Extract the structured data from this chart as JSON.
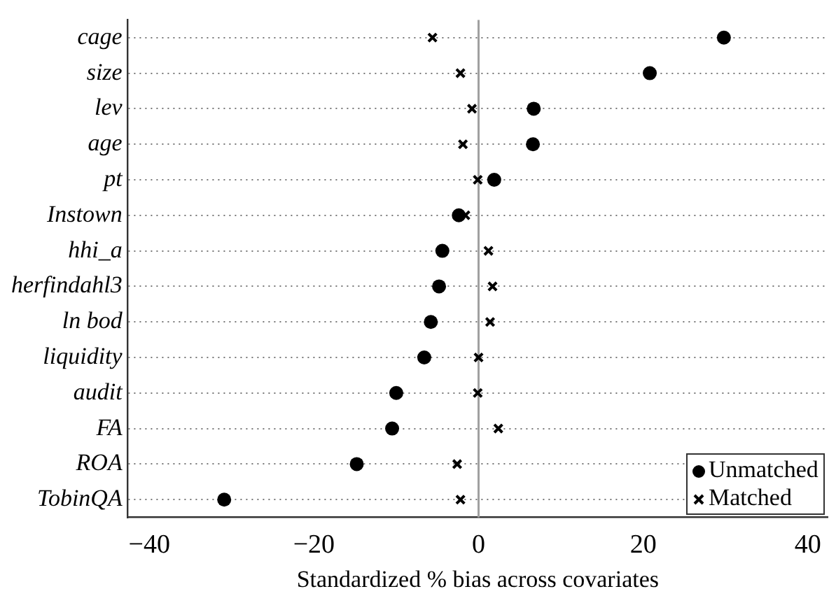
{
  "chart_data": {
    "type": "scatter",
    "categories": [
      "cage",
      "size",
      "lev",
      "age",
      "pt",
      "Instown",
      "hhi_a",
      "herfindahl3",
      "ln bod",
      "liquidity",
      "audit",
      "FA",
      "ROA",
      "TobinQA"
    ],
    "series": [
      {
        "name": "Unmatched",
        "color": "#000000",
        "marker": "circle",
        "values": [
          29.8,
          20.8,
          6.7,
          6.6,
          1.9,
          -2.4,
          -4.4,
          -4.8,
          -5.8,
          -6.6,
          -10.0,
          -10.5,
          -14.8,
          -30.9
        ]
      },
      {
        "name": "Matched",
        "color": "#000000",
        "marker": "cross",
        "values": [
          -5.6,
          -2.2,
          -0.8,
          -1.9,
          -0.1,
          -1.6,
          1.2,
          1.7,
          1.4,
          0.0,
          -0.1,
          2.4,
          -2.6,
          -2.2
        ]
      }
    ],
    "orientation": "horizontal",
    "xlabel": "Standardized % bias across covariates",
    "xlim": [
      -42.6,
      42.4
    ],
    "xticks": [
      {
        "value": -40,
        "label": "−40"
      },
      {
        "value": -20,
        "label": "−20"
      },
      0,
      20,
      40
    ],
    "ref_lines": [
      {
        "axis": "x",
        "value": 0,
        "color": "#a0a0a0"
      }
    ],
    "grid": "y",
    "legend": "bottom right"
  }
}
